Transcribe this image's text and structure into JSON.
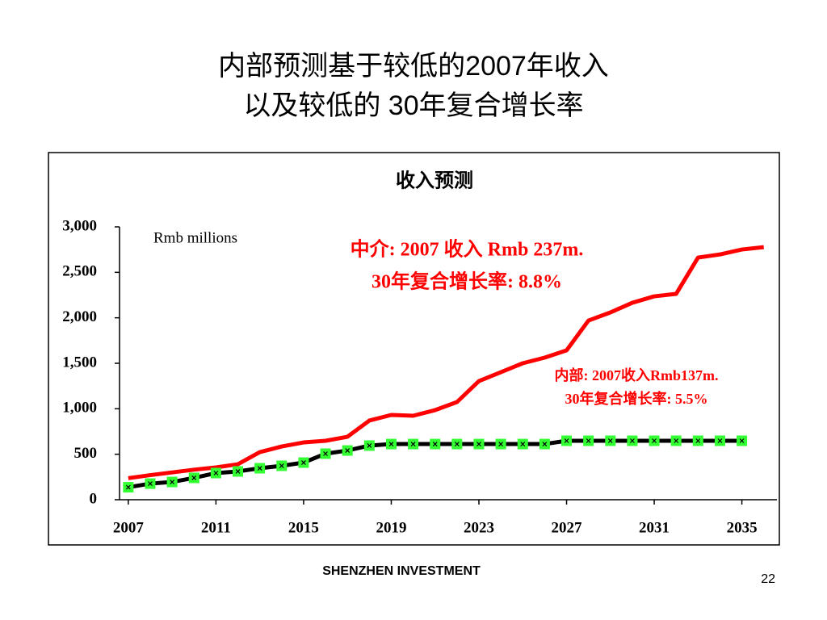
{
  "slide": {
    "title_lines": [
      "内部预测基于较低的2007年收入",
      "以及较低的 30年复合增长率"
    ],
    "footer": "SHENZHEN INVESTMENT",
    "page_number": "22"
  },
  "chart_data": {
    "type": "line",
    "title": "收入预测",
    "unit_note": "Rmb millions",
    "annotations": [
      {
        "lines": [
          "中介: 2007 收入 Rmb 237m.",
          "30年复合增长率: 8.8%"
        ],
        "color": "#ff0000"
      },
      {
        "lines": [
          "内部: 2007收入Rmb137m.",
          "30年复合增长率: 5.5%"
        ],
        "color": "#ff0000"
      }
    ],
    "x": [
      2007,
      2008,
      2009,
      2010,
      2011,
      2012,
      2013,
      2014,
      2015,
      2016,
      2017,
      2018,
      2019,
      2020,
      2021,
      2022,
      2023,
      2024,
      2025,
      2026,
      2027,
      2028,
      2029,
      2030,
      2031,
      2032,
      2033,
      2034,
      2035,
      2036
    ],
    "series": [
      {
        "color": "#ff0000",
        "marker": false,
        "values": [
          237,
          270,
          300,
          330,
          355,
          390,
          523,
          585,
          630,
          648,
          692,
          870,
          932,
          923,
          985,
          1074,
          1304,
          1402,
          1500,
          1562,
          1642,
          1970,
          2059,
          2165,
          2236,
          2263,
          2662,
          2697,
          2751,
          2777
        ]
      },
      {
        "color": "#000000",
        "marker_color": "#33ff33",
        "marker": true,
        "values": [
          137,
          177,
          195,
          240,
          293,
          311,
          346,
          373,
          408,
          506,
          541,
          595,
          612,
          612,
          612,
          612,
          612,
          612,
          612,
          612,
          648,
          648,
          648,
          648,
          648,
          648,
          648,
          648,
          648,
          null
        ]
      }
    ],
    "xlim": [
      2006.6,
      2036.6
    ],
    "xticks": [
      2007,
      2011,
      2015,
      2019,
      2023,
      2027,
      2031,
      2035
    ],
    "ylim": [
      0,
      3000
    ],
    "yticks": [
      0,
      500,
      {
        "value": 1000,
        "label": "1,000"
      },
      {
        "value": 1500,
        "label": "1,500"
      },
      {
        "value": 2000,
        "label": "2,000"
      },
      {
        "value": 2500,
        "label": "2,500"
      },
      {
        "value": 3000,
        "label": "3,000"
      }
    ],
    "grid": false
  }
}
